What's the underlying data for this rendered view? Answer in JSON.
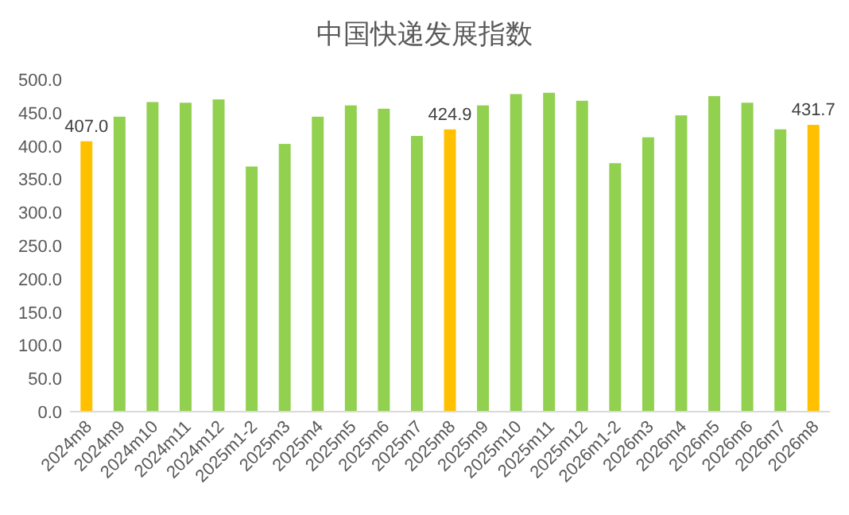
{
  "chart_data": {
    "type": "bar",
    "title": "中国快递发展指数",
    "categories": [
      "2024m8",
      "2024m9",
      "2024m10",
      "2024m11",
      "2024m12",
      "2025m1-2",
      "2025m3",
      "2025m4",
      "2025m5",
      "2025m6",
      "2025m7",
      "2025m8",
      "2025m9",
      "2025m10",
      "2025m11",
      "2025m12",
      "2026m1-2",
      "2026m3",
      "2026m4",
      "2026m5",
      "2026m6",
      "2026m7",
      "2026m8"
    ],
    "values": [
      407.0,
      444,
      466,
      465,
      470,
      369,
      403,
      444,
      461,
      456,
      415,
      424.9,
      461,
      478,
      480,
      468,
      374,
      413,
      446,
      475,
      465,
      425,
      431.7
    ],
    "colors": [
      "#ffc000",
      "#92d050",
      "#92d050",
      "#92d050",
      "#92d050",
      "#92d050",
      "#92d050",
      "#92d050",
      "#92d050",
      "#92d050",
      "#92d050",
      "#ffc000",
      "#92d050",
      "#92d050",
      "#92d050",
      "#92d050",
      "#92d050",
      "#92d050",
      "#92d050",
      "#92d050",
      "#92d050",
      "#92d050",
      "#ffc000"
    ],
    "value_labels": [
      "407.0",
      null,
      null,
      null,
      null,
      null,
      null,
      null,
      null,
      null,
      null,
      "424.9",
      null,
      null,
      null,
      null,
      null,
      null,
      null,
      null,
      null,
      null,
      "431.7"
    ],
    "ylim": [
      0,
      500
    ],
    "yticks": [
      {
        "value": 0,
        "label": "0.0"
      },
      {
        "value": 50,
        "label": "50.0"
      },
      {
        "value": 100,
        "label": "100.0"
      },
      {
        "value": 150,
        "label": "150.0"
      },
      {
        "value": 200,
        "label": "200.0"
      },
      {
        "value": 250,
        "label": "250.0"
      },
      {
        "value": 300,
        "label": "300.0"
      },
      {
        "value": 350,
        "label": "350.0"
      },
      {
        "value": 400,
        "label": "400.0"
      },
      {
        "value": 450,
        "label": "450.0"
      },
      {
        "value": 500,
        "label": "500.0"
      }
    ]
  }
}
